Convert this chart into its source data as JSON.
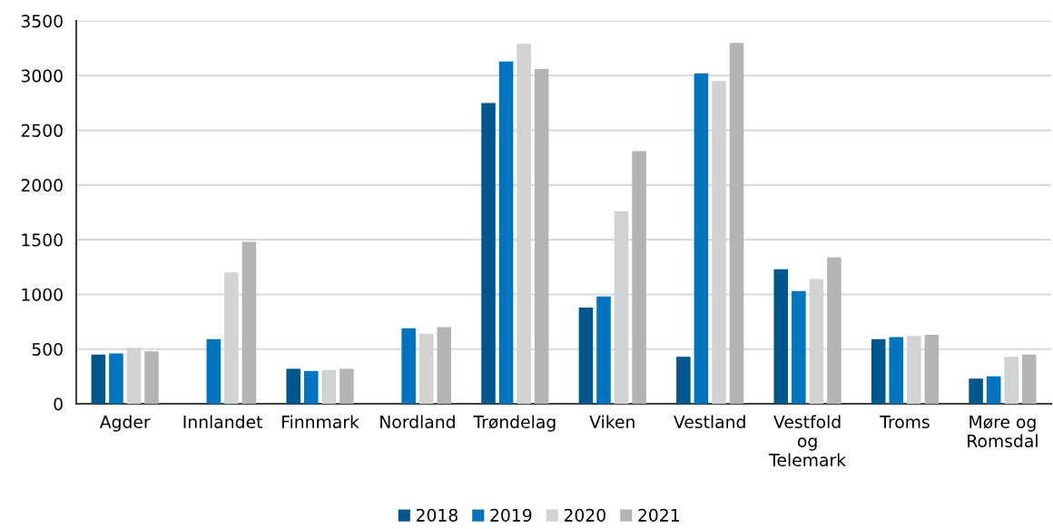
{
  "chart_data": {
    "type": "bar",
    "categories": [
      "Agder",
      "Innlandet",
      "Finnmark",
      "Nordland",
      "Trøndelag",
      "Viken",
      "Vestland",
      "Vestfold\nog\nTelemark",
      "Troms",
      "Møre og\nRomsdal"
    ],
    "series": [
      {
        "name": "2018",
        "color": "#00578e",
        "values": [
          450,
          null,
          320,
          null,
          2750,
          880,
          430,
          1230,
          590,
          230
        ]
      },
      {
        "name": "2019",
        "color": "#0075bf",
        "values": [
          460,
          590,
          300,
          690,
          3130,
          980,
          3020,
          1030,
          610,
          250
        ]
      },
      {
        "name": "2020",
        "color": "#d0d2d4",
        "values": [
          510,
          1200,
          310,
          640,
          3290,
          1760,
          2950,
          1140,
          620,
          430
        ]
      },
      {
        "name": "2021",
        "color": "#b3b4b6",
        "values": [
          480,
          1480,
          320,
          700,
          3060,
          2310,
          3300,
          1340,
          630,
          450
        ]
      }
    ],
    "ylim": [
      0,
      3500
    ],
    "yticks": [
      0,
      500,
      1000,
      1500,
      2000,
      2500,
      3000,
      3500
    ],
    "grid": "y",
    "legend": "bottom"
  }
}
